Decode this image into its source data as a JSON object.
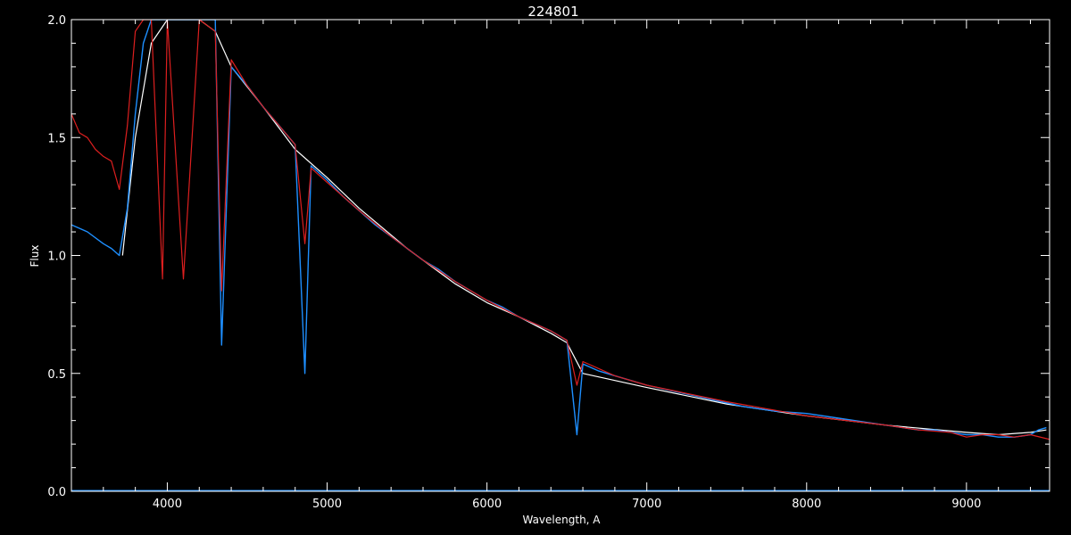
{
  "chart_data": {
    "type": "line",
    "title": "224801",
    "xlabel": "Wavelength, A",
    "ylabel": "Flux",
    "xlim": [
      3400,
      9520
    ],
    "ylim": [
      0.0,
      2.0
    ],
    "x_ticks": [
      4000,
      5000,
      6000,
      7000,
      8000,
      9000
    ],
    "y_ticks": [
      0.0,
      0.5,
      1.0,
      1.5,
      2.0
    ],
    "x_tick_labels": [
      "4000",
      "5000",
      "6000",
      "7000",
      "8000",
      "9000"
    ],
    "y_tick_labels": [
      "0.0",
      "0.5",
      "1.0",
      "1.5",
      "2.0"
    ],
    "grid": false,
    "colors": {
      "background": "#000000",
      "axes": "#ffffff",
      "white_series": "#ffffff",
      "blue_series": "#1e8fff",
      "red_series": "#dd1f1f"
    },
    "series": [
      {
        "color": "white",
        "x": [
          3720,
          3800,
          3900,
          4000,
          4200,
          4300,
          4400,
          4600,
          4800,
          5000,
          5200,
          5500,
          5800,
          6000,
          6200,
          6400,
          6500,
          6600,
          6800,
          7000,
          7500,
          8000,
          8500,
          9000,
          9200,
          9400,
          9500
        ],
        "y": [
          1.0,
          1.5,
          1.9,
          2.0,
          2.0,
          1.95,
          1.8,
          1.63,
          1.45,
          1.33,
          1.2,
          1.03,
          0.88,
          0.8,
          0.74,
          0.67,
          0.63,
          0.5,
          0.47,
          0.44,
          0.37,
          0.32,
          0.28,
          0.25,
          0.24,
          0.25,
          0.26
        ]
      },
      {
        "color": "blue",
        "x": [
          3400,
          3500,
          3600,
          3650,
          3700,
          3750,
          3800,
          3850,
          3900,
          3950,
          4000,
          4050,
          4100,
          4150,
          4200,
          4250,
          4300,
          4340,
          4400,
          4500,
          4600,
          4700,
          4800,
          4861,
          4900,
          5000,
          5100,
          5200,
          5300,
          5400,
          5500,
          5600,
          5700,
          5800,
          5900,
          6000,
          6100,
          6200,
          6300,
          6400,
          6500,
          6563,
          6600,
          6700,
          6800,
          6900,
          7000,
          7200,
          7400,
          7600,
          7800,
          8000,
          8200,
          8400,
          8500,
          8600,
          8700,
          8800,
          8900,
          9000,
          9100,
          9200,
          9300,
          9400,
          9450,
          9500
        ],
        "y": [
          1.13,
          1.1,
          1.05,
          1.03,
          1.0,
          1.2,
          1.6,
          1.9,
          2.0,
          2.0,
          2.0,
          2.0,
          2.0,
          2.0,
          2.0,
          2.0,
          2.0,
          0.62,
          1.8,
          1.72,
          1.63,
          1.55,
          1.47,
          0.5,
          1.38,
          1.32,
          1.25,
          1.19,
          1.13,
          1.08,
          1.03,
          0.98,
          0.94,
          0.89,
          0.85,
          0.81,
          0.78,
          0.74,
          0.71,
          0.68,
          0.64,
          0.24,
          0.54,
          0.51,
          0.49,
          0.47,
          0.45,
          0.42,
          0.39,
          0.36,
          0.34,
          0.33,
          0.31,
          0.29,
          0.28,
          0.27,
          0.26,
          0.26,
          0.25,
          0.24,
          0.24,
          0.23,
          0.23,
          0.24,
          0.26,
          0.27
        ]
      },
      {
        "color": "red",
        "x": [
          3400,
          3450,
          3500,
          3550,
          3600,
          3650,
          3700,
          3750,
          3800,
          3850,
          3900,
          3970,
          4000,
          4101,
          4200,
          4300,
          4340,
          4400,
          4500,
          4600,
          4700,
          4800,
          4861,
          4900,
          5000,
          5200,
          5400,
          5600,
          5800,
          6000,
          6200,
          6400,
          6500,
          6563,
          6600,
          6800,
          7000,
          7500,
          8000,
          8500,
          8700,
          8900,
          9000,
          9100,
          9200,
          9300,
          9400,
          9520
        ],
        "y": [
          1.6,
          1.52,
          1.5,
          1.45,
          1.42,
          1.4,
          1.28,
          1.55,
          1.95,
          2.0,
          2.0,
          0.9,
          2.0,
          0.9,
          2.0,
          1.95,
          0.85,
          1.83,
          1.72,
          1.63,
          1.55,
          1.47,
          1.05,
          1.37,
          1.31,
          1.19,
          1.08,
          0.98,
          0.89,
          0.81,
          0.74,
          0.68,
          0.64,
          0.45,
          0.55,
          0.49,
          0.45,
          0.38,
          0.32,
          0.28,
          0.26,
          0.25,
          0.23,
          0.24,
          0.24,
          0.23,
          0.24,
          0.22
        ]
      }
    ]
  }
}
